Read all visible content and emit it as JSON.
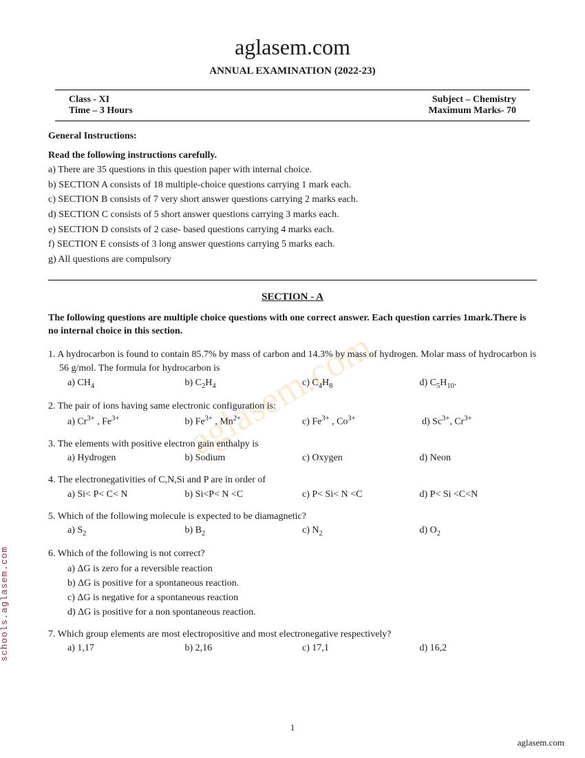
{
  "site": "aglasem.com",
  "examTitle": "ANNUAL EXAMINATION    (2022-23)",
  "header": {
    "classLabel": "Class - XI",
    "subjectLabel": "Subject –  Chemistry",
    "timeLabel": "Time – 3 Hours",
    "marksLabel": "Maximum Marks- 70"
  },
  "genInstrLabel": "General Instructions:",
  "readCarefully": "Read the following instructions carefully.",
  "instructions": {
    "a": "a) There are 35 questions in this question paper with internal choice.",
    "b": "b) SECTION A consists of 18 multiple-choice questions carrying 1 mark each.",
    "c": "c) SECTION B consists of 7 very short answer questions carrying 2 marks each.",
    "d": "d) SECTION C consists of 5 short answer questions carrying 3 marks each.",
    "e": "e) SECTION D consists of 2 case- based questions carrying 4 marks each.",
    "f": "f) SECTION E consists of 3 long answer questions carrying 5 marks each.",
    "g": "g) All questions are compulsory"
  },
  "sectionA": {
    "title": "SECTION - A",
    "instr": "The following questions are multiple choice questions with one correct answer. Each question carries 1mark.There is no internal choice in this section."
  },
  "questions": {
    "q1": {
      "text": "1. A hydrocarbon is found to contain 85.7% by mass of carbon and 14.3% by mass of hydrogen. Molar mass of hydrocarbon is 56 g/mol. The formula for hydrocarbon is"
    },
    "q2": {
      "text": "2. The pair of ions having same electronic configuration is:"
    },
    "q3": {
      "text": "3. The elements with positive electron gain enthalpy is",
      "a": "a) Hydrogen",
      "b": "b) Sodium",
      "c": "c) Oxygen",
      "d": "d) Neon"
    },
    "q4": {
      "text": "4. The electronegativities of C,N,Si and P are in order of",
      "a": "a) Si< P< C< N",
      "b": "b) Si<P< N <C",
      "c": "c) P< Si< N <C",
      "d": "d) P< Si <C<N"
    },
    "q5": {
      "text": "5. Which of the following molecule is expected to be diamagnetic?"
    },
    "q6": {
      "text": "6. Which of the following is not correct?",
      "a": "a) ΔG is zero for a reversible reaction",
      "b": "b) ΔG is positive for a spontaneous reaction.",
      "c": "c) ΔG is negative for a spontaneous reaction",
      "d": "d) ΔG is positive for a non spontaneous reaction."
    },
    "q7": {
      "text": "7. Which group elements are most electropositive and most electronegative respectively?",
      "a": "a) 1,17",
      "b": "b) 2,16",
      "c": "c) 17,1",
      "d": "d) 16,2"
    }
  },
  "pageNumber": "1",
  "footerRight": "aglasem.com",
  "sideText": "schools.aglasem.com",
  "watermark": "aglasem.com"
}
